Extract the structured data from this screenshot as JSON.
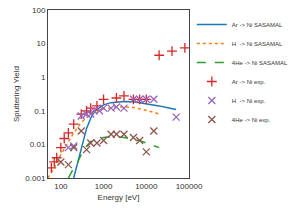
{
  "chart_data": {
    "type": "line",
    "xlabel": "Energy [eV]",
    "ylabel": "Sputtering Yield",
    "log": true,
    "grid": false,
    "legend": "right",
    "xlim": [
      50,
      100000
    ],
    "ylim": [
      0.001,
      100
    ],
    "xticks": [
      100,
      1000,
      10000,
      100000
    ],
    "yticks": [
      0.001,
      0.01,
      0.1,
      1,
      10,
      100
    ],
    "series": [
      {
        "name": "Ar -> Ni SASAMAL",
        "type": "line",
        "line_style": "solid",
        "x": [
          200,
          250,
          300,
          400,
          500,
          600,
          700,
          800,
          1000,
          1500,
          2000,
          3000,
          5000,
          7000,
          10000,
          15000,
          20000,
          30000,
          50000
        ],
        "values": [
          0.001,
          0.003,
          0.008,
          0.03,
          0.06,
          0.09,
          0.11,
          0.125,
          0.15,
          0.175,
          0.185,
          0.19,
          0.185,
          0.175,
          0.165,
          0.15,
          0.14,
          0.125,
          0.11
        ]
      },
      {
        "name": "H  -> Ni SASAMAL",
        "type": "line",
        "line_style": "dotted",
        "x": [
          50,
          60,
          70,
          80,
          100,
          150,
          200,
          300,
          500,
          700,
          1000,
          1500,
          2000,
          3000,
          5000,
          7000,
          10000,
          15000,
          20000
        ],
        "values": [
          0.001,
          0.0015,
          0.002,
          0.003,
          0.005,
          0.012,
          0.022,
          0.045,
          0.08,
          0.1,
          0.115,
          0.125,
          0.13,
          0.13,
          0.125,
          0.115,
          0.105,
          0.09,
          0.08
        ]
      },
      {
        "name": "4He -> Ni SASAMAL",
        "type": "line",
        "line_style": "dashed",
        "x": [
          150,
          200,
          250,
          300,
          400,
          500,
          700,
          1000,
          1500,
          2000,
          3000,
          5000,
          7000,
          10000,
          15000,
          20000
        ],
        "values": [
          0.001,
          0.002,
          0.003,
          0.005,
          0.009,
          0.012,
          0.014,
          0.016,
          0.017,
          0.017,
          0.016,
          0.014,
          0.013,
          0.011,
          0.009,
          0.008
        ]
      },
      {
        "name": "Ar -> Ni exp.",
        "type": "scatter",
        "marker": "plus",
        "x": [
          60,
          70,
          80,
          100,
          120,
          150,
          200,
          300,
          400,
          500,
          700,
          1000,
          2000,
          3000,
          5000,
          7000,
          10000,
          20000,
          40000,
          80000
        ],
        "values": [
          0.002,
          0.003,
          0.004,
          0.008,
          0.015,
          0.022,
          0.04,
          0.08,
          0.1,
          0.12,
          0.14,
          0.22,
          0.24,
          0.28,
          0.22,
          0.22,
          0.22,
          4.5,
          6.0,
          7.5
        ]
      },
      {
        "name": "H  -> Ni exp.",
        "type": "scatter",
        "marker": "x",
        "x": [
          150,
          200,
          300,
          400,
          500,
          600,
          800,
          1000,
          1500,
          2000,
          3000,
          5000,
          7000,
          10000,
          15000,
          50000
        ],
        "values": [
          0.008,
          0.009,
          0.07,
          0.08,
          0.08,
          0.1,
          0.1,
          0.12,
          0.12,
          0.13,
          0.12,
          0.22,
          0.22,
          0.22,
          0.22,
          0.065
        ]
      },
      {
        "name": "4He -> Ni exp.",
        "type": "scatter",
        "marker": "x",
        "x": [
          100,
          150,
          200,
          300,
          400,
          500,
          700,
          1000,
          1500,
          2000,
          3000,
          5000,
          7000,
          10000,
          15000
        ],
        "values": [
          0.003,
          0.0025,
          0.008,
          0.025,
          0.007,
          0.011,
          0.011,
          0.013,
          0.02,
          0.02,
          0.02,
          0.016,
          0.013,
          0.006,
          0.025
        ]
      }
    ]
  }
}
